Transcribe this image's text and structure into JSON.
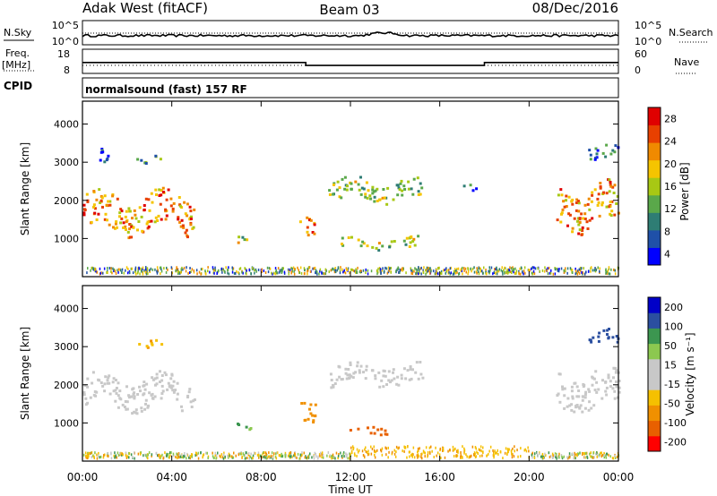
{
  "header": {
    "title": "Adak West (fitACF)",
    "beam": "Beam 03",
    "date": "08/Dec/2016"
  },
  "top_panels": {
    "nsky_label": "N.Sky",
    "nsky_ticks": [
      "10^5",
      "10^0"
    ],
    "nsearch_label": "N.Search",
    "nsearch_ticks": [
      "10^5",
      "10^0"
    ],
    "freq_label_1": "Freq.",
    "freq_label_2": "[MHz]",
    "freq_ticks": [
      "18",
      "8"
    ],
    "nave_label": "Nave",
    "nave_ticks": [
      "60",
      "0"
    ],
    "cpid_label": "CPID",
    "cpid_text": "normalsound (fast) 157 RF",
    "freq_steps": [
      {
        "from": 0,
        "to": 10,
        "mhz": 12.5
      },
      {
        "from": 10,
        "to": 18,
        "mhz": 11.3
      },
      {
        "from": 18,
        "to": 24,
        "mhz": 12.5
      }
    ]
  },
  "colors": {
    "axis": "#000000",
    "power_scale": [
      "#0000ff",
      "#1f50a8",
      "#2e7d74",
      "#5aa84a",
      "#a8c814",
      "#f5c400",
      "#f08a00",
      "#e84000",
      "#e00000"
    ],
    "velocity_scale": [
      "#ff0000",
      "#e86000",
      "#f09000",
      "#f5c000",
      "#c8c8c8",
      "#c8c8c8",
      "#8cc850",
      "#3c9650",
      "#2b4fa0",
      "#0000c8"
    ]
  },
  "chart_data": [
    {
      "type": "heatmap",
      "title": "Power",
      "xlabel": "",
      "ylabel": "Slant Range [km]",
      "x_range_hours": [
        0,
        24
      ],
      "ylim": [
        0,
        4600
      ],
      "y_ticks": [
        "1000",
        "2000",
        "3000",
        "4000"
      ],
      "colorbar_label": "Power [dB]",
      "colorbar_ticks": [
        "28",
        "24",
        "20",
        "16",
        "12",
        "8",
        "4"
      ],
      "clusters": [
        {
          "t0": 0.0,
          "t1": 5.0,
          "r0": 1000,
          "r1": 2400,
          "level": 0.75
        },
        {
          "t0": 0.7,
          "t1": 1.4,
          "r0": 2800,
          "r1": 3400,
          "level": 0.1
        },
        {
          "t0": 2.4,
          "t1": 3.6,
          "r0": 2950,
          "r1": 3250,
          "level": 0.3
        },
        {
          "t0": 6.9,
          "t1": 7.5,
          "r0": 800,
          "r1": 1150,
          "level": 0.5
        },
        {
          "t0": 9.7,
          "t1": 10.4,
          "r0": 1000,
          "r1": 1800,
          "level": 0.8
        },
        {
          "t0": 11.0,
          "t1": 15.2,
          "r0": 1900,
          "r1": 2700,
          "level": 0.45
        },
        {
          "t0": 11.5,
          "t1": 15.0,
          "r0": 700,
          "r1": 1100,
          "level": 0.45
        },
        {
          "t0": 17.0,
          "t1": 17.6,
          "r0": 2200,
          "r1": 2500,
          "level": 0.2
        },
        {
          "t0": 21.2,
          "t1": 24.0,
          "r0": 1100,
          "r1": 2600,
          "level": 0.75
        },
        {
          "t0": 22.5,
          "t1": 24.0,
          "r0": 3000,
          "r1": 3500,
          "level": 0.2
        }
      ]
    },
    {
      "type": "heatmap",
      "title": "Velocity",
      "xlabel": "Time UT",
      "ylabel": "Slant Range [km]",
      "x_range_hours": [
        0,
        24
      ],
      "x_ticks": [
        "00:00",
        "04:00",
        "08:00",
        "12:00",
        "16:00",
        "20:00",
        "00:00"
      ],
      "ylim": [
        0,
        4600
      ],
      "y_ticks": [
        "1000",
        "2000",
        "3000",
        "4000"
      ],
      "colorbar_label": "Velocity [m s⁻¹]",
      "colorbar_ticks": [
        "200",
        "100",
        "50",
        "15",
        "-15",
        "-50",
        "-100",
        "-200"
      ],
      "clusters": [
        {
          "t0": 0.0,
          "t1": 5.0,
          "r0": 1200,
          "r1": 2400,
          "velocity": 0
        },
        {
          "t0": 2.4,
          "t1": 3.6,
          "r0": 2950,
          "r1": 3250,
          "velocity": -40
        },
        {
          "t0": 6.9,
          "t1": 7.5,
          "r0": 800,
          "r1": 1150,
          "velocity": 60
        },
        {
          "t0": 9.7,
          "t1": 10.4,
          "r0": 900,
          "r1": 1800,
          "velocity": -80
        },
        {
          "t0": 11.0,
          "t1": 15.2,
          "r0": 1900,
          "r1": 2700,
          "velocity": 0
        },
        {
          "t0": 11.8,
          "t1": 13.6,
          "r0": 700,
          "r1": 1000,
          "velocity": -160
        },
        {
          "t0": 21.2,
          "t1": 24.0,
          "r0": 1200,
          "r1": 2600,
          "velocity": 0
        },
        {
          "t0": 22.5,
          "t1": 24.0,
          "r0": 3000,
          "r1": 3500,
          "velocity": 150
        }
      ]
    }
  ]
}
